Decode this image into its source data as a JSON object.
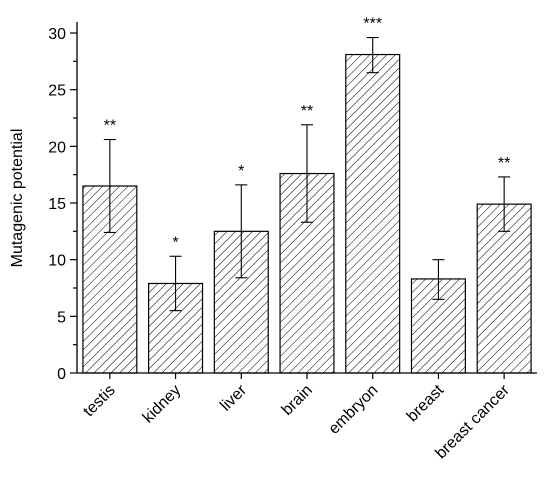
{
  "chart_data": {
    "type": "bar",
    "categories": [
      "testis",
      "kidney",
      "liver",
      "brain",
      "embryon",
      "breast",
      "breast cancer"
    ],
    "values": [
      16.5,
      7.9,
      12.5,
      17.6,
      28.1,
      8.3,
      14.9
    ],
    "error_low": [
      12.4,
      5.5,
      8.4,
      13.3,
      26.5,
      6.5,
      12.5
    ],
    "error_high": [
      20.6,
      10.3,
      16.6,
      21.9,
      29.6,
      10.0,
      17.3
    ],
    "significance": [
      "**",
      "*",
      "*",
      "**",
      "***",
      "",
      "**"
    ],
    "title": "",
    "xlabel": "",
    "ylabel": "Mutagenic potential",
    "ylim": [
      0,
      30
    ],
    "yticks": [
      0,
      5,
      10,
      15,
      20,
      25,
      30
    ],
    "grid": false,
    "bar_fill": "hatched"
  }
}
